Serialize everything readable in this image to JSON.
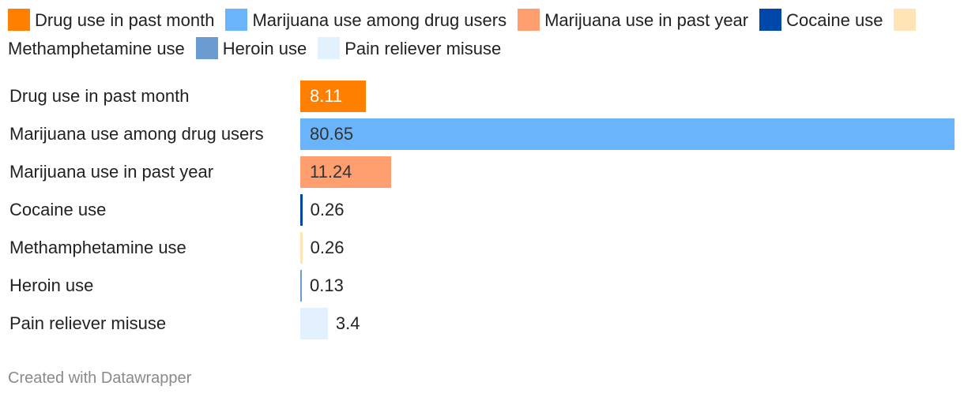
{
  "chart_data": {
    "type": "bar",
    "orientation": "horizontal",
    "title": "",
    "xlabel": "",
    "ylabel": "",
    "xlim": [
      0,
      80.65
    ],
    "grid": false,
    "legend_position": "top",
    "categories": [
      "Drug use in past month",
      "Marijuana use among drug users",
      "Marijuana use in past year",
      "Cocaine use",
      "Methamphetamine use",
      "Heroin use",
      "Pain reliever misuse"
    ],
    "values": [
      8.11,
      80.65,
      11.24,
      0.26,
      0.26,
      0.13,
      3.4
    ],
    "value_labels": [
      "8.11",
      "80.65",
      "11.24",
      "0.26",
      "0.26",
      "0.13",
      "3.4"
    ],
    "colors": [
      "#ff8000",
      "#6ab4fc",
      "#ff9e6e",
      "#0047ab",
      "#ffe4b5",
      "#6a9bd1",
      "#e3f0fd"
    ],
    "legend": [
      "Drug use in past month",
      "Marijuana use among drug users",
      "Marijuana use in past year",
      "Cocaine use",
      "Methamphetamine use",
      "Heroin use",
      "Pain reliever misuse"
    ]
  },
  "footer": {
    "credit": "Created with Datawrapper"
  }
}
